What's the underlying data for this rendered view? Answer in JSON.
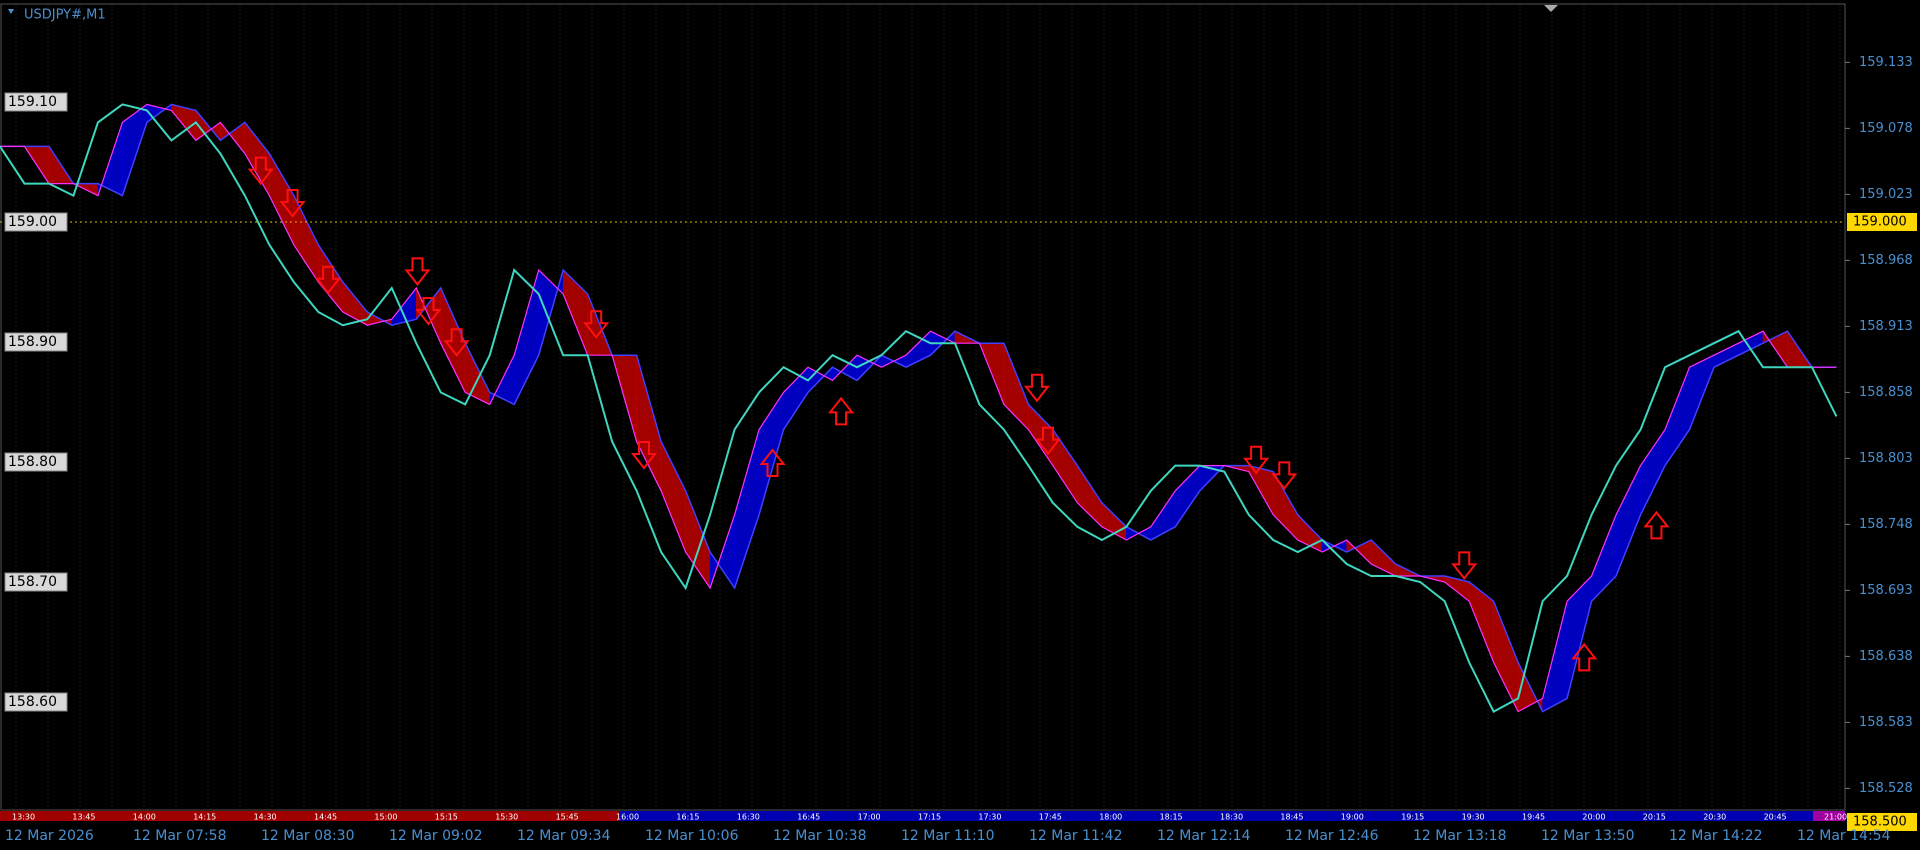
{
  "header": {
    "symbol": "USDJPY#,M1"
  },
  "chart_data": {
    "type": "line",
    "xlim": [
      0,
      75.35
    ],
    "ylim": [
      158.51,
      159.18
    ],
    "yticks": [
      159.133,
      159.078,
      159.023,
      158.968,
      158.913,
      158.858,
      158.803,
      158.748,
      158.693,
      158.638,
      158.583,
      158.528
    ],
    "level_labels": [
      {
        "value": 159.1,
        "label": "159.10"
      },
      {
        "value": 159.0,
        "label": "159.00"
      },
      {
        "value": 158.9,
        "label": "158.90"
      },
      {
        "value": 158.8,
        "label": "158.80"
      },
      {
        "value": 158.7,
        "label": "158.70"
      },
      {
        "value": 158.6,
        "label": "158.60"
      }
    ],
    "price_line": {
      "value": 159.0,
      "label": "159.000"
    },
    "bottom_price": {
      "value": 158.5,
      "label": "158.500"
    },
    "price": {
      "color": "#3fd6c0",
      "values": [
        159.063,
        159.032,
        159.032,
        159.022,
        159.083,
        159.098,
        159.093,
        159.068,
        159.083,
        159.057,
        159.022,
        158.981,
        158.95,
        158.925,
        158.914,
        158.919,
        158.945,
        158.899,
        158.858,
        158.848,
        158.889,
        158.96,
        158.94,
        158.889,
        158.889,
        158.817,
        158.776,
        158.725,
        158.695,
        158.756,
        158.827,
        158.858,
        158.879,
        158.868,
        158.889,
        158.879,
        158.889,
        158.909,
        158.899,
        158.899,
        158.848,
        158.827,
        158.797,
        158.766,
        158.746,
        158.735,
        158.746,
        158.776,
        158.797,
        158.797,
        158.792,
        158.756,
        158.735,
        158.725,
        158.735,
        158.715,
        158.705,
        158.705,
        158.7,
        158.684,
        158.633,
        158.592,
        158.603,
        158.684,
        158.705,
        158.756,
        158.797,
        158.827,
        158.879,
        158.889,
        158.899,
        158.909,
        158.879,
        158.879,
        158.879,
        158.838
      ]
    },
    "fast_ma": {
      "color": "#ff30ff",
      "values": [
        159.063,
        159.063,
        159.032,
        159.032,
        159.022,
        159.083,
        159.098,
        159.093,
        159.068,
        159.083,
        159.057,
        159.022,
        158.981,
        158.95,
        158.925,
        158.914,
        158.919,
        158.945,
        158.899,
        158.858,
        158.848,
        158.889,
        158.96,
        158.94,
        158.889,
        158.889,
        158.817,
        158.776,
        158.725,
        158.695,
        158.756,
        158.827,
        158.858,
        158.879,
        158.868,
        158.889,
        158.879,
        158.889,
        158.909,
        158.899,
        158.899,
        158.848,
        158.827,
        158.797,
        158.766,
        158.746,
        158.735,
        158.746,
        158.776,
        158.797,
        158.797,
        158.792,
        158.756,
        158.735,
        158.725,
        158.735,
        158.715,
        158.705,
        158.705,
        158.7,
        158.684,
        158.633,
        158.592,
        158.603,
        158.684,
        158.705,
        158.756,
        158.797,
        158.827,
        158.879,
        158.889,
        158.899,
        158.909,
        158.879,
        158.879,
        158.879
      ]
    },
    "slow_ma": {
      "color": "#4040ff",
      "values": [
        159.063,
        159.063,
        159.063,
        159.032,
        159.032,
        159.022,
        159.083,
        159.098,
        159.093,
        159.068,
        159.083,
        159.057,
        159.022,
        158.981,
        158.95,
        158.925,
        158.914,
        158.919,
        158.945,
        158.899,
        158.858,
        158.848,
        158.889,
        158.96,
        158.94,
        158.889,
        158.889,
        158.817,
        158.776,
        158.725,
        158.695,
        158.756,
        158.827,
        158.858,
        158.879,
        158.868,
        158.889,
        158.879,
        158.889,
        158.909,
        158.899,
        158.899,
        158.848,
        158.827,
        158.797,
        158.766,
        158.746,
        158.735,
        158.746,
        158.776,
        158.797,
        158.797,
        158.792,
        158.756,
        158.735,
        158.725,
        158.735,
        158.715,
        158.705,
        158.705,
        158.7,
        158.684,
        158.633,
        158.592,
        158.603,
        158.684,
        158.705,
        158.756,
        158.797,
        158.827,
        158.879,
        158.889,
        158.899,
        158.909,
        158.879,
        158.879
      ]
    },
    "rising_color": "#0000e0",
    "falling_color": "#c00000",
    "signal_color": "#ff1010",
    "signals": [
      {
        "x": 10.65,
        "value": 159.042,
        "direction": "down"
      },
      {
        "x": 11.95,
        "value": 159.015,
        "direction": "down"
      },
      {
        "x": 13.4,
        "value": 158.951,
        "direction": "down"
      },
      {
        "x": 17.05,
        "value": 158.958,
        "direction": "down"
      },
      {
        "x": 17.5,
        "value": 158.925,
        "direction": "down"
      },
      {
        "x": 18.65,
        "value": 158.899,
        "direction": "down"
      },
      {
        "x": 24.35,
        "value": 158.914,
        "direction": "down"
      },
      {
        "x": 26.3,
        "value": 158.805,
        "direction": "down"
      },
      {
        "x": 42.35,
        "value": 158.861,
        "direction": "down"
      },
      {
        "x": 42.8,
        "value": 158.817,
        "direction": "down"
      },
      {
        "x": 51.3,
        "value": 158.801,
        "direction": "down"
      },
      {
        "x": 52.45,
        "value": 158.788,
        "direction": "down"
      },
      {
        "x": 59.8,
        "value": 158.713,
        "direction": "down"
      },
      {
        "x": 31.55,
        "value": 158.8,
        "direction": "up"
      },
      {
        "x": 34.35,
        "value": 158.843,
        "direction": "up"
      },
      {
        "x": 64.7,
        "value": 158.638,
        "direction": "up"
      },
      {
        "x": 67.65,
        "value": 158.748,
        "direction": "up"
      }
    ],
    "time_labels": [
      "12 Mar 2026",
      "12 Mar 07:58",
      "12 Mar 08:30",
      "12 Mar 09:02",
      "12 Mar 09:34",
      "12 Mar 10:06",
      "12 Mar 10:38",
      "12 Mar 11:10",
      "12 Mar 11:42",
      "12 Mar 12:14",
      "12 Mar 12:46",
      "12 Mar 13:18",
      "12 Mar 13:50",
      "12 Mar 14:22",
      "12 Mar 14:54"
    ],
    "session_labels": [
      "13:30",
      "13:45",
      "14:00",
      "14:15",
      "14:30",
      "14:45",
      "15:00",
      "15:15",
      "15:30",
      "15:45",
      "16:00",
      "16:15",
      "16:30",
      "16:45",
      "17:00",
      "17:15",
      "17:30",
      "17:45",
      "18:00",
      "18:15",
      "18:30",
      "18:45",
      "19:00",
      "19:15",
      "19:30",
      "19:45",
      "20:00",
      "20:15",
      "20:30",
      "20:45",
      "21:00"
    ]
  }
}
